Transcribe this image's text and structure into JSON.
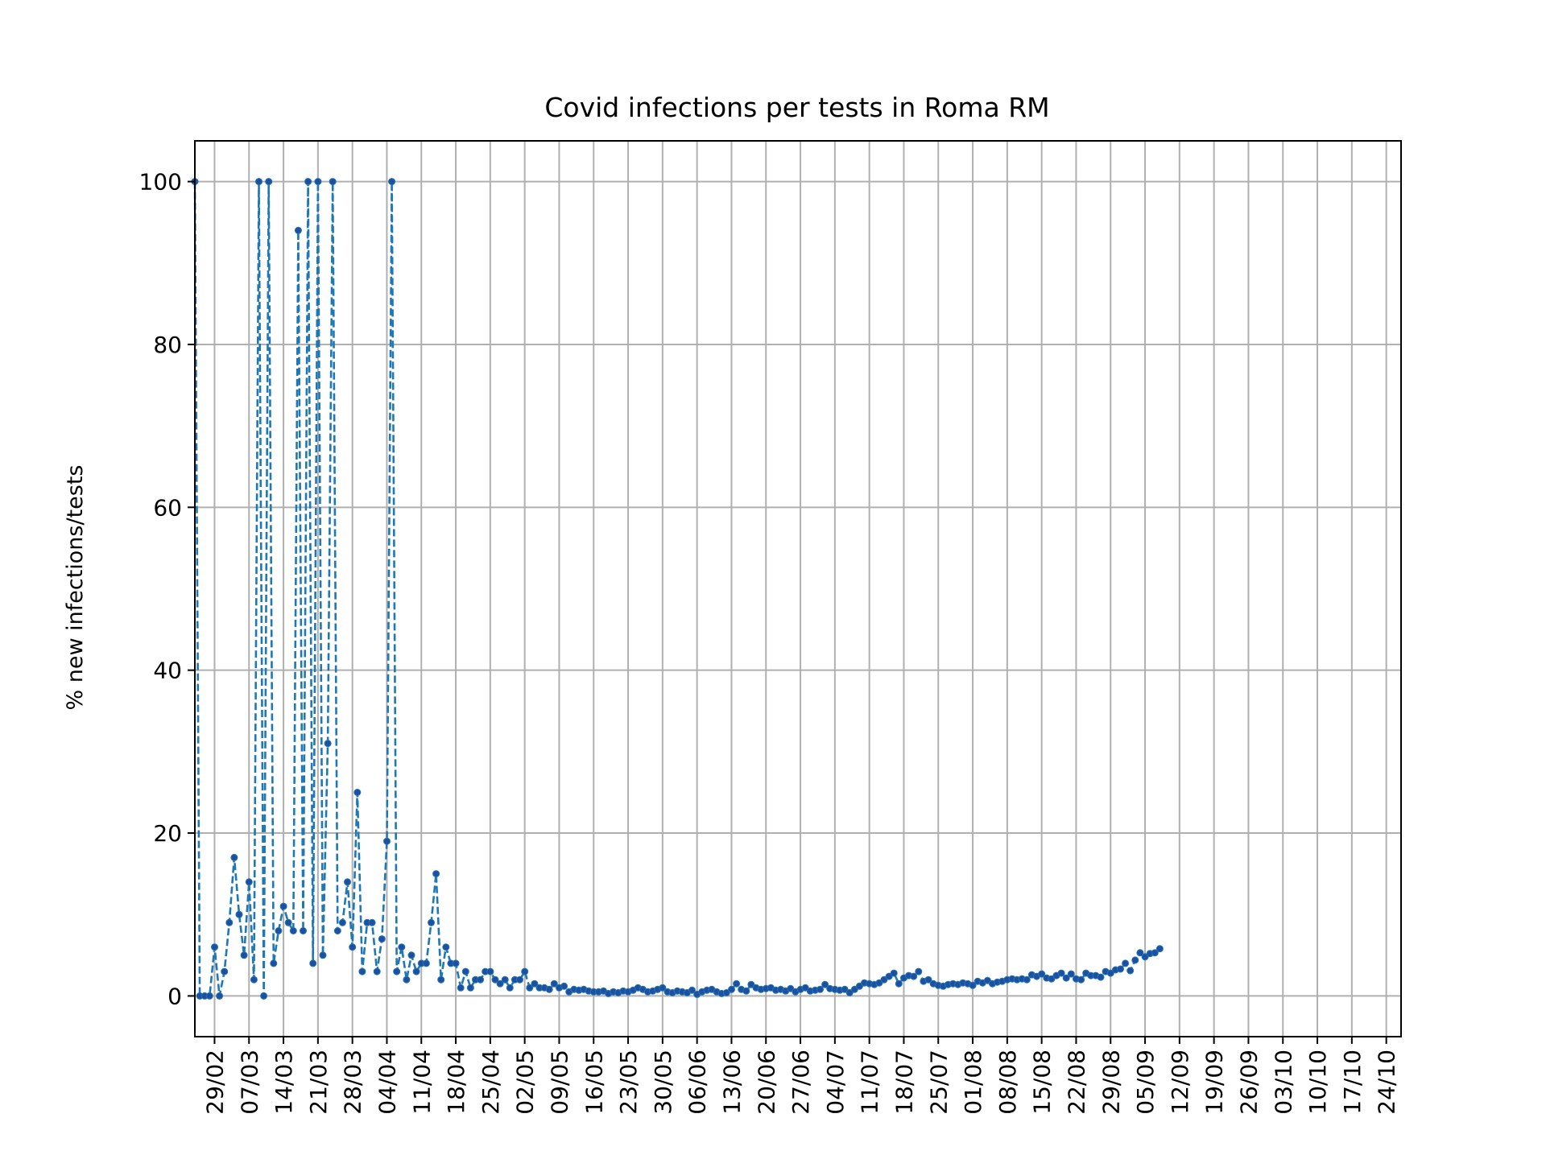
{
  "chart_data": {
    "type": "line",
    "title": "Covid infections per tests in Roma RM",
    "xlabel": "",
    "ylabel": "% new infections/tests",
    "ylim": [
      -5,
      105
    ],
    "x_range": [
      "2020-02-25",
      "2020-10-27"
    ],
    "grid": true,
    "line_style": "dashed",
    "marker": "dot",
    "color": "#1f77b4",
    "point_color": "#1f4fa0",
    "yticks": [
      0,
      20,
      40,
      60,
      80,
      100
    ],
    "xticks": [
      {
        "date": "2020-02-29",
        "label": "29/02"
      },
      {
        "date": "2020-03-07",
        "label": "07/03"
      },
      {
        "date": "2020-03-14",
        "label": "14/03"
      },
      {
        "date": "2020-03-21",
        "label": "21/03"
      },
      {
        "date": "2020-03-28",
        "label": "28/03"
      },
      {
        "date": "2020-04-04",
        "label": "04/04"
      },
      {
        "date": "2020-04-11",
        "label": "11/04"
      },
      {
        "date": "2020-04-18",
        "label": "18/04"
      },
      {
        "date": "2020-04-25",
        "label": "25/04"
      },
      {
        "date": "2020-05-02",
        "label": "02/05"
      },
      {
        "date": "2020-05-09",
        "label": "09/05"
      },
      {
        "date": "2020-05-16",
        "label": "16/05"
      },
      {
        "date": "2020-05-23",
        "label": "23/05"
      },
      {
        "date": "2020-05-30",
        "label": "30/05"
      },
      {
        "date": "2020-06-06",
        "label": "06/06"
      },
      {
        "date": "2020-06-13",
        "label": "13/06"
      },
      {
        "date": "2020-06-20",
        "label": "20/06"
      },
      {
        "date": "2020-06-27",
        "label": "27/06"
      },
      {
        "date": "2020-07-04",
        "label": "04/07"
      },
      {
        "date": "2020-07-11",
        "label": "11/07"
      },
      {
        "date": "2020-07-18",
        "label": "18/07"
      },
      {
        "date": "2020-07-25",
        "label": "25/07"
      },
      {
        "date": "2020-08-01",
        "label": "01/08"
      },
      {
        "date": "2020-08-08",
        "label": "08/08"
      },
      {
        "date": "2020-08-15",
        "label": "15/08"
      },
      {
        "date": "2020-08-22",
        "label": "22/08"
      },
      {
        "date": "2020-08-29",
        "label": "29/08"
      },
      {
        "date": "2020-09-05",
        "label": "05/09"
      },
      {
        "date": "2020-09-12",
        "label": "12/09"
      },
      {
        "date": "2020-09-19",
        "label": "19/09"
      },
      {
        "date": "2020-09-26",
        "label": "26/09"
      },
      {
        "date": "2020-10-03",
        "label": "03/10"
      },
      {
        "date": "2020-10-10",
        "label": "10/10"
      },
      {
        "date": "2020-10-17",
        "label": "17/10"
      },
      {
        "date": "2020-10-24",
        "label": "24/10"
      }
    ],
    "x_start": "2020-02-25",
    "values": [
      100,
      0,
      0,
      0,
      6,
      0,
      3,
      9,
      17,
      10,
      5,
      14,
      2,
      100,
      0,
      100,
      4,
      8,
      11,
      9,
      8,
      94,
      8,
      100,
      4,
      100,
      5,
      31,
      100,
      8,
      9,
      14,
      6,
      25,
      3,
      9,
      9,
      3,
      7,
      19,
      100,
      3,
      6,
      2,
      5,
      3,
      4,
      4,
      9,
      15,
      2,
      6,
      4,
      4,
      1,
      3,
      1,
      2,
      2,
      3,
      3,
      2,
      1.5,
      2,
      1,
      2,
      2,
      3,
      1,
      1.5,
      1,
      1,
      0.8,
      1.5,
      1,
      1.2,
      0.5,
      0.8,
      0.7,
      0.8,
      0.6,
      0.5,
      0.5,
      0.6,
      0.3,
      0.5,
      0.4,
      0.6,
      0.5,
      0.7,
      1,
      0.8,
      0.5,
      0.6,
      0.8,
      1,
      0.5,
      0.4,
      0.6,
      0.5,
      0.4,
      0.7,
      0.2,
      0.5,
      0.7,
      0.8,
      0.5,
      0.3,
      0.4,
      0.8,
      1.5,
      0.8,
      0.6,
      1.4,
      1,
      0.8,
      0.9,
      1,
      0.7,
      0.8,
      0.6,
      0.9,
      0.5,
      0.8,
      1,
      0.6,
      0.7,
      0.8,
      1.4,
      0.9,
      0.8,
      0.7,
      0.8,
      0.4,
      0.8,
      1.2,
      1.6,
      1.5,
      1.4,
      1.6,
      2,
      2.4,
      2.8,
      1.5,
      2.2,
      2.5,
      2.4,
      3,
      1.8,
      2,
      1.5,
      1.3,
      1.2,
      1.4,
      1.5,
      1.4,
      1.6,
      1.5,
      1.3,
      1.8,
      1.6,
      1.9,
      1.5,
      1.7,
      1.8,
      2,
      2.1,
      2,
      2.1,
      2,
      2.6,
      2.4,
      2.7,
      2.2,
      2.1,
      2.5,
      2.8,
      2.2,
      2.7,
      2.1,
      2,
      2.8,
      2.5,
      2.5,
      2.3,
      3,
      2.8,
      3.2,
      3.3,
      4,
      3.1,
      4.4,
      5.3,
      4.8,
      5.2,
      5.3,
      5.8
    ]
  }
}
